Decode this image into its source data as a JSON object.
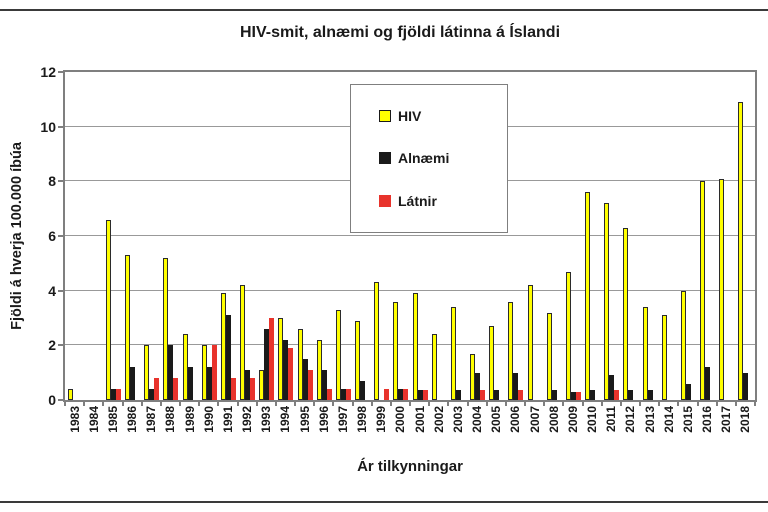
{
  "chart_data": {
    "type": "bar",
    "title": "HIV-smit, alnæmi og fjöldi látinna á Íslandi",
    "xlabel": "Ár tilkynningar",
    "ylabel": "Fjöldi á hverja 100.000 íbúa",
    "ylim": [
      0,
      12
    ],
    "yticks": [
      0,
      2,
      4,
      6,
      8,
      10,
      12
    ],
    "grid": true,
    "gridline_color": "#999999",
    "frame_color": "#7f7f7f",
    "legend_position": "inside-top-center",
    "categories": [
      "1983",
      "1984",
      "1985",
      "1986",
      "1987",
      "1988",
      "1989",
      "1990",
      "1991",
      "1992",
      "1993",
      "1994",
      "1995",
      "1996",
      "1997",
      "1998",
      "1999",
      "2000",
      "2001",
      "2002",
      "2003",
      "2004",
      "2005",
      "2006",
      "2007",
      "2008",
      "2009",
      "2010",
      "2011",
      "2012",
      "2013",
      "2014",
      "2015",
      "2016",
      "2017",
      "2018"
    ],
    "series": [
      {
        "name": "HIV",
        "color": "#ffff00",
        "border_color": "#2b2b2b",
        "values": [
          0.4,
          0,
          6.6,
          5.3,
          2.0,
          5.2,
          2.4,
          2.0,
          3.9,
          4.2,
          1.1,
          3.0,
          2.6,
          2.2,
          3.3,
          2.9,
          4.3,
          3.6,
          3.9,
          2.4,
          3.4,
          1.7,
          2.7,
          3.6,
          4.2,
          3.2,
          4.7,
          7.6,
          7.2,
          6.3,
          3.4,
          3.1,
          4.0,
          8.0,
          8.1,
          10.9
        ]
      },
      {
        "name": "Alnæmi",
        "color": "#1a1a1a",
        "border_color": "#1a1a1a",
        "values": [
          0,
          0,
          0.4,
          1.2,
          0.4,
          2.0,
          1.2,
          1.2,
          3.1,
          1.1,
          2.6,
          2.2,
          1.5,
          1.1,
          0.4,
          0.7,
          0,
          0.4,
          0.35,
          0,
          0.35,
          1.0,
          0.35,
          1.0,
          0,
          0.35,
          0.3,
          0.35,
          0.9,
          0.35,
          0.35,
          0,
          0.6,
          1.2,
          0,
          1.0
        ]
      },
      {
        "name": "Látnir",
        "color": "#e8332c",
        "border_color": "#e8332c",
        "values": [
          0,
          0,
          0.4,
          0,
          0.8,
          0.8,
          0,
          2.0,
          0.8,
          0.8,
          3.0,
          1.9,
          1.1,
          0.4,
          0.4,
          0,
          0.4,
          0.4,
          0.35,
          0,
          0,
          0.35,
          0,
          0.35,
          0,
          0,
          0.3,
          0,
          0.35,
          0,
          0,
          0,
          0,
          0,
          0,
          0
        ]
      }
    ]
  }
}
